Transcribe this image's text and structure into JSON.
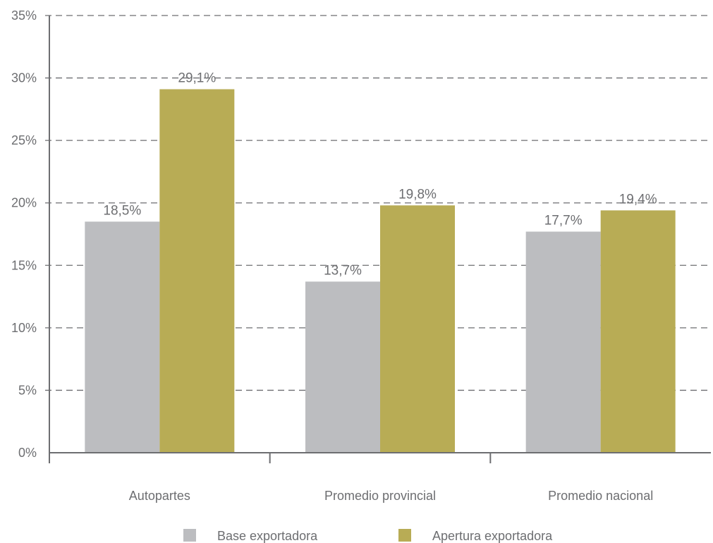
{
  "chart_data": {
    "type": "bar",
    "categories": [
      "Autopartes",
      "Promedio provincial",
      "Promedio nacional"
    ],
    "series": [
      {
        "name": "Base exportadora",
        "values": [
          18.5,
          13.7,
          17.7
        ],
        "labels": [
          "18,5%",
          "13,7%",
          "17,7%"
        ],
        "color": "#bcbdc0"
      },
      {
        "name": "Apertura exportadora",
        "values": [
          29.1,
          19.8,
          19.4
        ],
        "labels": [
          "29,1%",
          "19,8%",
          "19,4%"
        ],
        "color": "#b8ac55"
      }
    ],
    "y_ticks": [
      0,
      5,
      10,
      15,
      20,
      25,
      30,
      35
    ],
    "y_tick_labels": [
      "0%",
      "5%",
      "10%",
      "15%",
      "20%",
      "25%",
      "30%",
      "35%"
    ],
    "ylim": [
      0,
      35
    ],
    "grid": true,
    "grid_style": "dashed",
    "legend_position": "bottom-center",
    "axis_color": "#6d6e71",
    "label_color": "#6d6e71"
  }
}
